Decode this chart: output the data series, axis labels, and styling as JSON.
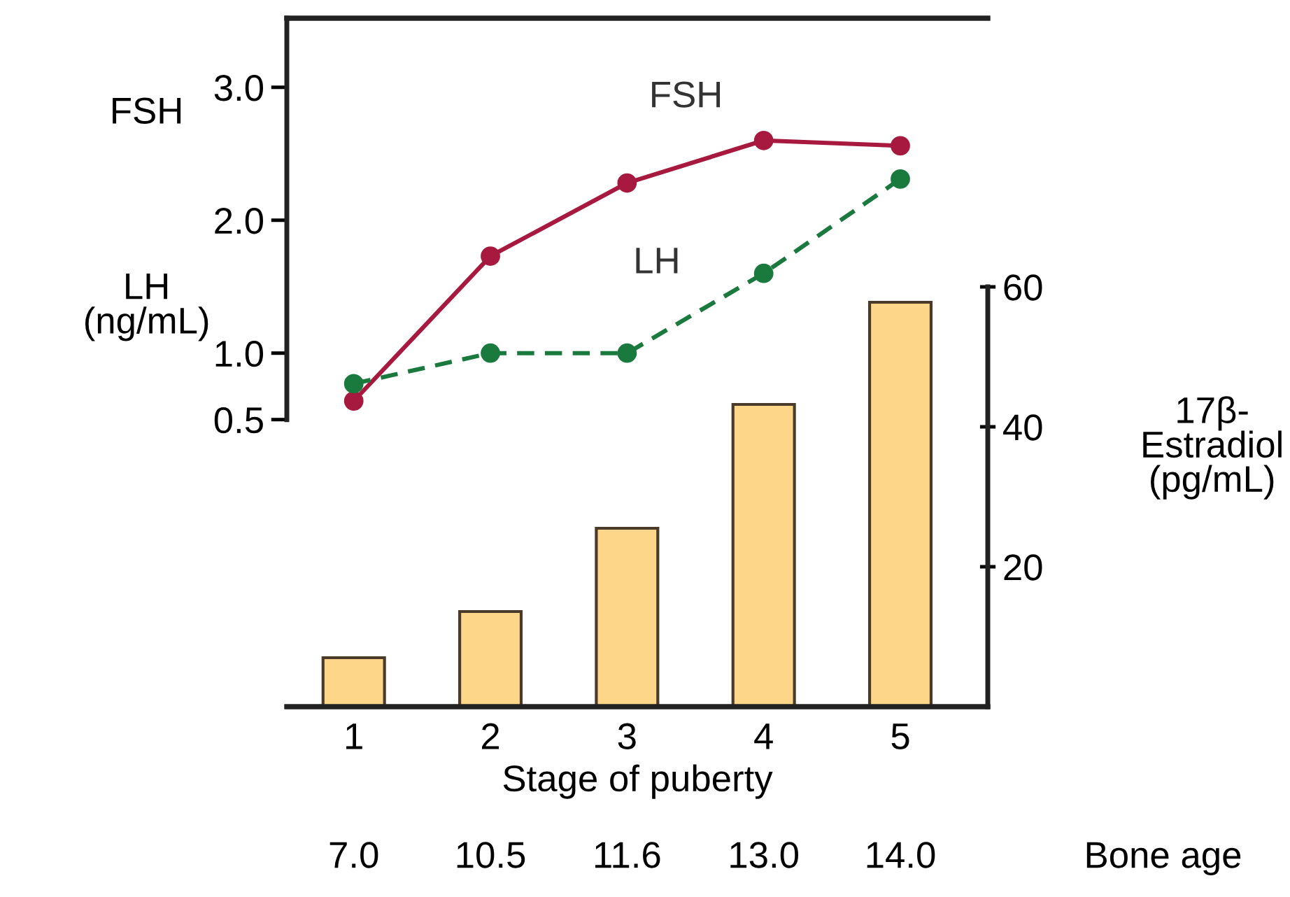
{
  "chart_data": {
    "type": "line",
    "categories": [
      "1",
      "2",
      "3",
      "4",
      "5"
    ],
    "xlabel": "Stage of puberty",
    "ylabel": "FSH\nLH\n(ng/mL)",
    "y2label": "17β-\nEstradiol\n(pg/mL)",
    "ylim": [
      -1.66,
      3.52
    ],
    "yticks": [
      {
        "value": 0.5,
        "label": "0.5"
      },
      {
        "value": 1.0,
        "label": "1.0"
      },
      {
        "value": 2.0,
        "label": "2.0"
      },
      {
        "value": 3.0,
        "label": "3.0"
      }
    ],
    "y2lim": [
      0,
      98.4
    ],
    "y2ticks": [
      20,
      40,
      60
    ],
    "series": [
      {
        "name": "FSH",
        "color": "#a8193f",
        "values": [
          0.64,
          1.73,
          2.28,
          2.6,
          2.56
        ],
        "marker": "circle",
        "line_style": "solid"
      },
      {
        "name": "LH",
        "color": "#1a7a3e",
        "values": [
          0.77,
          1.0,
          1.0,
          1.6,
          2.31
        ],
        "marker": "circle",
        "line_style": "dashed"
      },
      {
        "type": "bar",
        "axis": "y2",
        "color": "#fdd68a",
        "values": [
          7,
          13.6,
          25.5,
          43.2,
          57.8
        ]
      }
    ],
    "annotations": [
      "7.0",
      "10.5",
      "11.6",
      "13.0",
      "14.0",
      "Bone age"
    ],
    "grid": false,
    "legend": false
  }
}
